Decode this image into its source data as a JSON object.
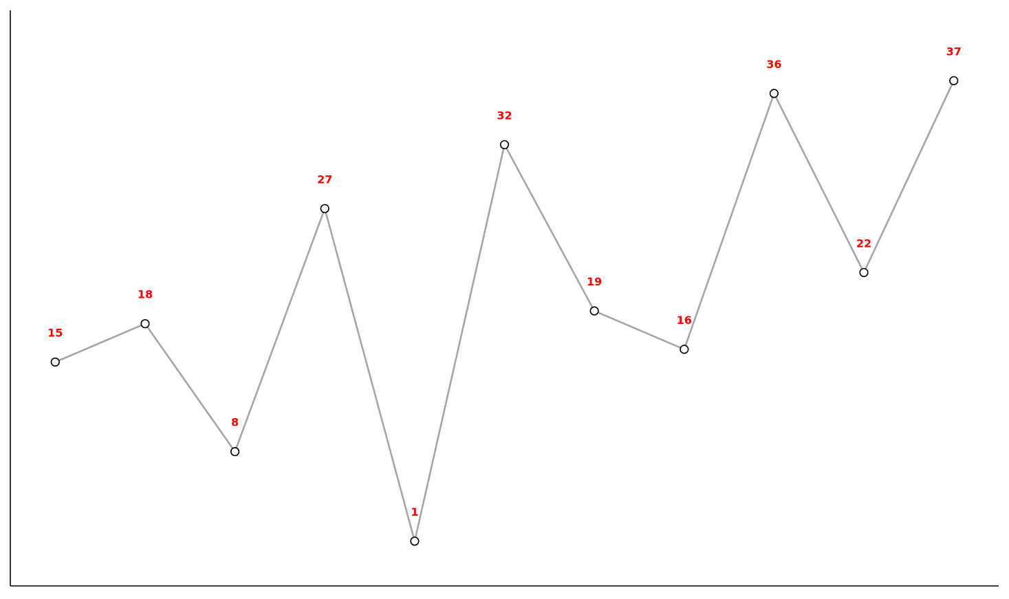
{
  "chart_data": {
    "type": "line",
    "title": "",
    "xlabel": "",
    "ylabel": "",
    "x": [
      0,
      1,
      2,
      3,
      4,
      5,
      6,
      7,
      8,
      9,
      10
    ],
    "values": [
      15,
      18,
      8,
      27,
      1,
      32,
      19,
      16,
      36,
      22,
      37
    ],
    "data_labels": [
      "15",
      "18",
      "8",
      "27",
      "1",
      "32",
      "19",
      "16",
      "36",
      "22",
      "37"
    ],
    "xlim": [
      -0.5,
      10.5
    ],
    "ylim": [
      -2.5,
      42.5
    ],
    "grid": false,
    "legend": "none",
    "axes_visible": [
      "left",
      "bottom"
    ],
    "ticks_visible": false,
    "line_color": "#a6a6a6",
    "marker_fill": "#ffffff",
    "marker_edge": "#000000",
    "label_color": "#ff0000",
    "axis_color": "#000000"
  }
}
